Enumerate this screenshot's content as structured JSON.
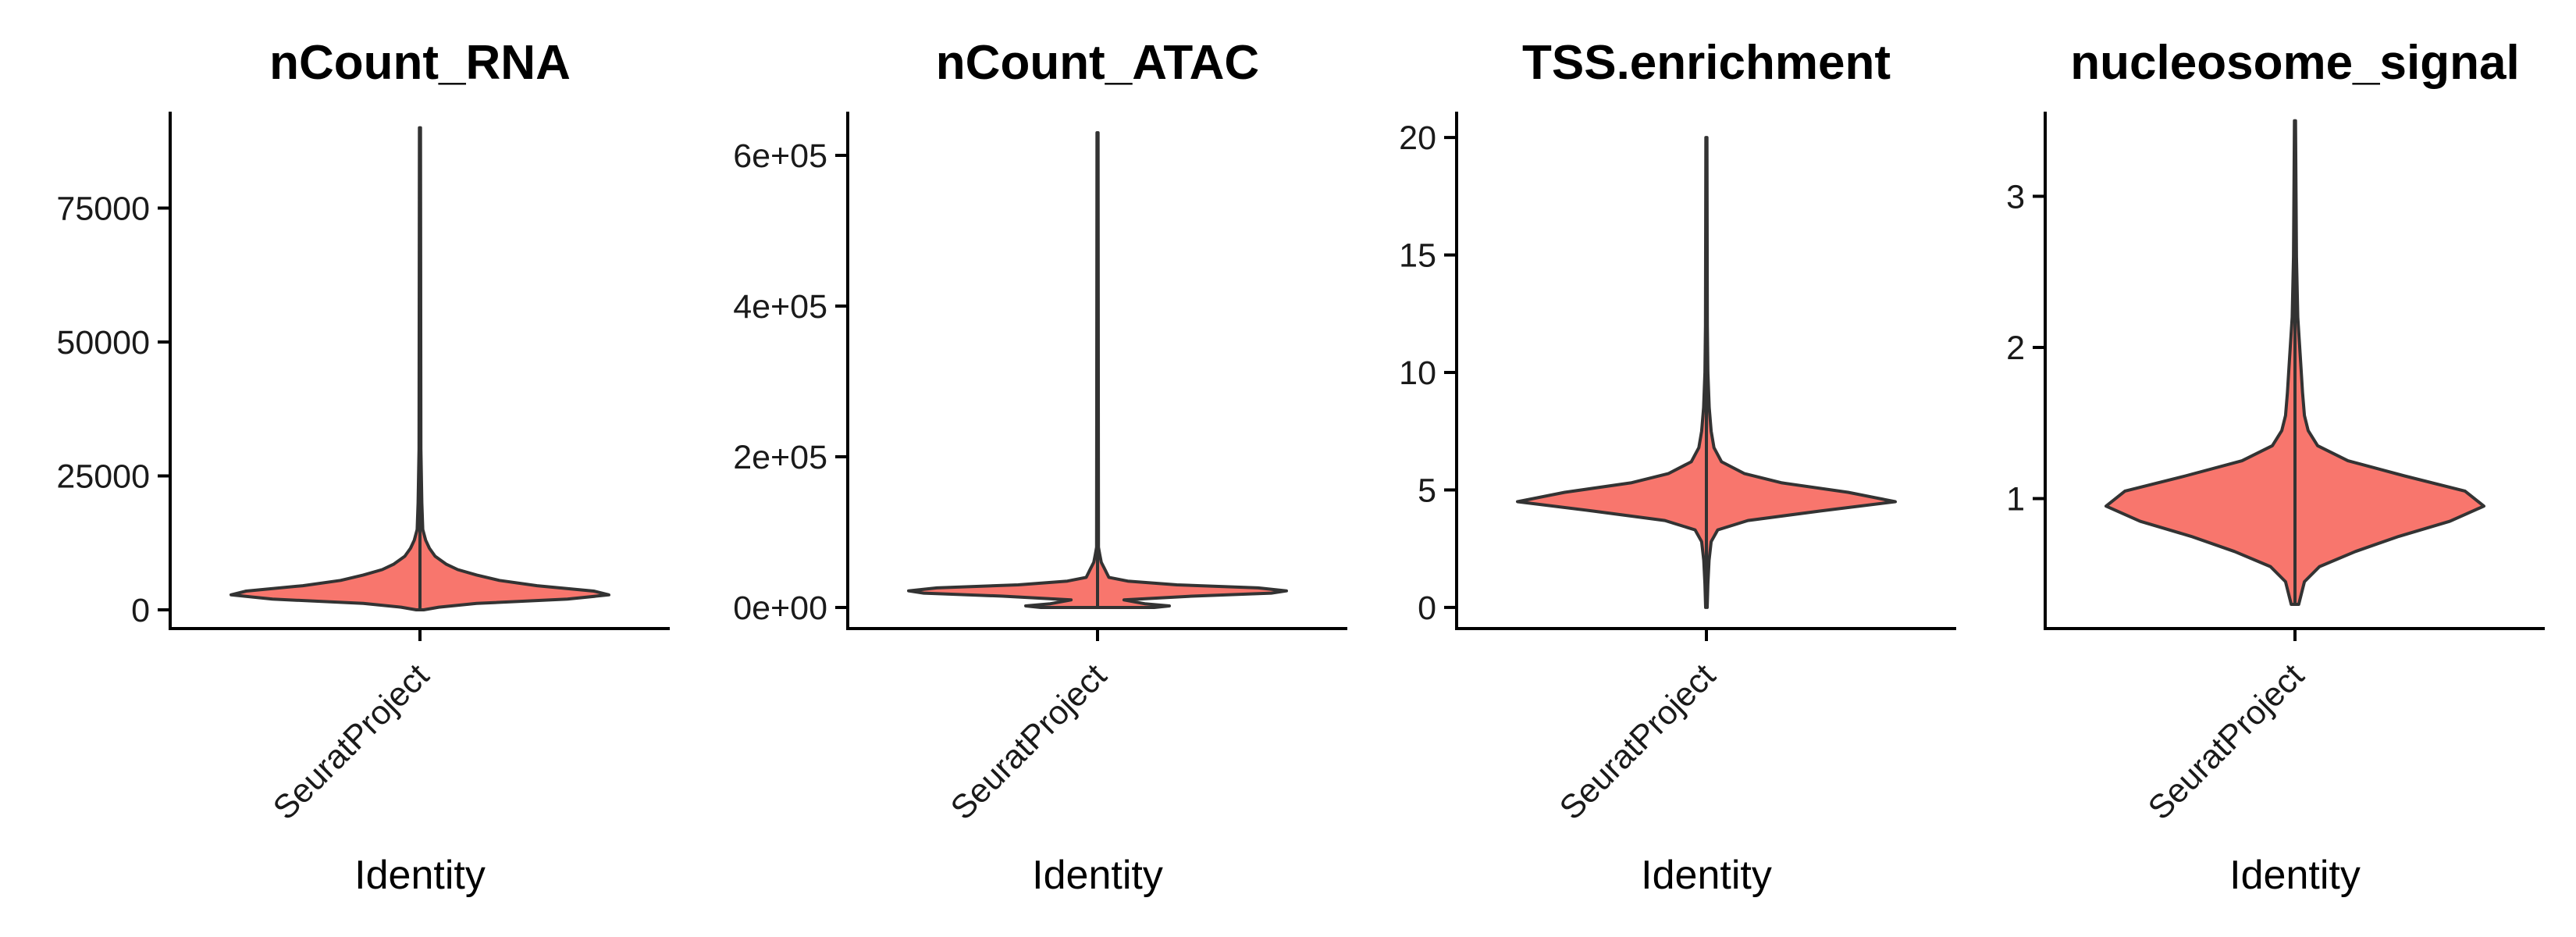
{
  "chart_data": [
    {
      "type": "violin",
      "title": "nCount_RNA",
      "xlabel": "Identity",
      "ylabel": "",
      "categories": [
        "SeuratProject"
      ],
      "yticks": [
        0,
        25000,
        50000,
        75000
      ],
      "ytick_labels": [
        "0",
        "25000",
        "50000",
        "75000"
      ],
      "ylim": [
        -3500,
        93000
      ],
      "fill": "#F8766D",
      "series": [
        {
          "category": "SeuratProject",
          "min": 0,
          "max": 90000,
          "density": [
            [
              0,
              0.02
            ],
            [
              500,
              0.1
            ],
            [
              1200,
              0.3
            ],
            [
              2000,
              0.78
            ],
            [
              2800,
              1.0
            ],
            [
              3500,
              0.92
            ],
            [
              4500,
              0.62
            ],
            [
              5500,
              0.42
            ],
            [
              6500,
              0.3
            ],
            [
              7500,
              0.2
            ],
            [
              8500,
              0.14
            ],
            [
              10000,
              0.08
            ],
            [
              11500,
              0.05
            ],
            [
              13000,
              0.03
            ],
            [
              15000,
              0.015
            ],
            [
              20000,
              0.01
            ],
            [
              30000,
              0.005
            ],
            [
              90000,
              0.003
            ]
          ]
        }
      ]
    },
    {
      "type": "violin",
      "title": "nCount_ATAC",
      "xlabel": "Identity",
      "ylabel": "",
      "categories": [
        "SeuratProject"
      ],
      "yticks": [
        0,
        200000,
        400000,
        600000
      ],
      "ytick_labels": [
        "0e+00",
        "2e+05",
        "4e+05",
        "6e+05"
      ],
      "ylim": [
        -28000,
        658000
      ],
      "fill": "#F8766D",
      "series": [
        {
          "category": "SeuratProject",
          "min": 0,
          "max": 630000,
          "density": [
            [
              0,
              0.3
            ],
            [
              2000,
              0.38
            ],
            [
              5000,
              0.25
            ],
            [
              10000,
              0.14
            ],
            [
              15000,
              0.5
            ],
            [
              19000,
              0.92
            ],
            [
              22000,
              1.0
            ],
            [
              26000,
              0.85
            ],
            [
              30000,
              0.42
            ],
            [
              35000,
              0.16
            ],
            [
              40000,
              0.06
            ],
            [
              45000,
              0.05
            ],
            [
              50000,
              0.04
            ],
            [
              60000,
              0.02
            ],
            [
              70000,
              0.012
            ],
            [
              80000,
              0.005
            ],
            [
              630000,
              0.003
            ]
          ]
        }
      ]
    },
    {
      "type": "violin",
      "title": "TSS.enrichment",
      "xlabel": "Identity",
      "ylabel": "",
      "categories": [
        "SeuratProject"
      ],
      "yticks": [
        0,
        5,
        10,
        15,
        20
      ],
      "ytick_labels": [
        "0",
        "5",
        "10",
        "15",
        "20"
      ],
      "ylim": [
        -0.9,
        21.1
      ],
      "fill": "#F8766D",
      "series": [
        {
          "category": "SeuratProject",
          "min": 0,
          "max": 20,
          "density": [
            [
              0,
              0.004
            ],
            [
              1,
              0.008
            ],
            [
              2,
              0.014
            ],
            [
              2.8,
              0.025
            ],
            [
              3.3,
              0.06
            ],
            [
              3.7,
              0.22
            ],
            [
              4.1,
              0.6
            ],
            [
              4.5,
              1.0
            ],
            [
              4.9,
              0.75
            ],
            [
              5.3,
              0.4
            ],
            [
              5.7,
              0.2
            ],
            [
              6.2,
              0.08
            ],
            [
              6.8,
              0.04
            ],
            [
              7.5,
              0.025
            ],
            [
              8.5,
              0.015
            ],
            [
              10,
              0.008
            ],
            [
              12,
              0.005
            ],
            [
              20,
              0.003
            ]
          ]
        }
      ]
    },
    {
      "type": "violin",
      "title": "nucleosome_signal",
      "xlabel": "Identity",
      "ylabel": "",
      "categories": [
        "SeuratProject"
      ],
      "yticks": [
        1,
        2,
        3
      ],
      "ytick_labels": [
        "1",
        "2",
        "3"
      ],
      "ylim": [
        0.14,
        3.56
      ],
      "fill": "#F8766D",
      "series": [
        {
          "category": "SeuratProject",
          "min": 0.3,
          "max": 3.5,
          "density": [
            [
              0.3,
              0.02
            ],
            [
              0.45,
              0.05
            ],
            [
              0.55,
              0.13
            ],
            [
              0.65,
              0.32
            ],
            [
              0.75,
              0.55
            ],
            [
              0.85,
              0.82
            ],
            [
              0.95,
              1.0
            ],
            [
              1.05,
              0.9
            ],
            [
              1.15,
              0.58
            ],
            [
              1.25,
              0.28
            ],
            [
              1.35,
              0.12
            ],
            [
              1.45,
              0.07
            ],
            [
              1.55,
              0.05
            ],
            [
              1.7,
              0.04
            ],
            [
              1.9,
              0.03
            ],
            [
              2.2,
              0.015
            ],
            [
              2.6,
              0.008
            ],
            [
              3.5,
              0.003
            ]
          ]
        }
      ]
    }
  ]
}
